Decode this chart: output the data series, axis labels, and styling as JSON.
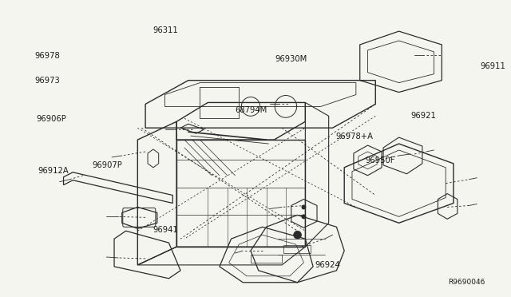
{
  "background_color": "#f5f5f0",
  "diagram_ref": "R9690046",
  "line_color": "#2a2a2a",
  "text_color": "#1a1a1a",
  "font_size": 7.2,
  "parts_labels": {
    "96941": [
      0.355,
      0.775,
      "right"
    ],
    "96924": [
      0.628,
      0.895,
      "left"
    ],
    "96912A": [
      0.135,
      0.575,
      "right"
    ],
    "96907P": [
      0.242,
      0.558,
      "right"
    ],
    "96950F": [
      0.73,
      0.54,
      "left"
    ],
    "96978+A": [
      0.67,
      0.46,
      "left"
    ],
    "96921": [
      0.82,
      0.39,
      "left"
    ],
    "96906P": [
      0.13,
      0.4,
      "right"
    ],
    "68794M": [
      0.468,
      0.37,
      "left"
    ],
    "96973": [
      0.118,
      0.27,
      "right"
    ],
    "96978": [
      0.118,
      0.185,
      "right"
    ],
    "96311": [
      0.33,
      0.1,
      "center"
    ],
    "96930M": [
      0.548,
      0.198,
      "left"
    ],
    "96911": [
      0.96,
      0.22,
      "left"
    ]
  }
}
